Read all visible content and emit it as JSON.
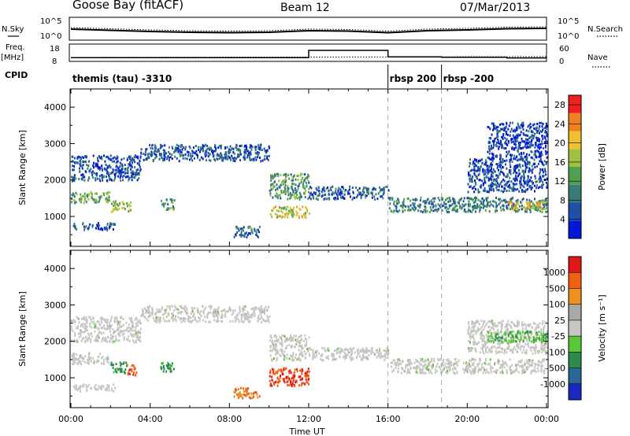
{
  "header": {
    "station": "Goose Bay (fitACF)",
    "beam": "Beam 12",
    "date": "07/Mar/2013"
  },
  "side_labels": {
    "nsky": "N.Sky",
    "nsky_top": "10^5",
    "nsky_bottom": "10^0",
    "freq_line1": "Freq.",
    "freq_line2": "[MHz]",
    "freq_top": "18",
    "freq_bottom": "8",
    "cpid": "CPID",
    "nsearch": "N.Search",
    "nsearch_top": "10^5",
    "nsearch_bottom": "10^0",
    "nave": "Nave",
    "nave_top": "60",
    "nave_bottom": "0"
  },
  "modes": [
    {
      "label": "themis (tau) -3310",
      "start_hour": 0
    },
    {
      "label": "rbsp 200",
      "start_hour": 16
    },
    {
      "label": "rbsp -200",
      "start_hour": 18.7
    }
  ],
  "xaxis": {
    "label": "Time UT",
    "ticks": [
      "00:00",
      "04:00",
      "08:00",
      "12:00",
      "16:00",
      "20:00",
      "00:00"
    ],
    "range_hours": [
      0,
      24
    ]
  },
  "chart_data": [
    {
      "type": "heatmap",
      "name": "power",
      "ylabel": "Slant Range [km]",
      "yticks": [
        "1000",
        "2000",
        "3000",
        "4000"
      ],
      "ylim": [
        180,
        4500
      ],
      "colorbar_label": "Power [dB]",
      "colorbar_ticks": [
        "4",
        "8",
        "12",
        "16",
        "20",
        "24",
        "28"
      ],
      "colorbar_range": [
        0,
        30
      ],
      "colors": [
        "#0018d8",
        "#1f50a8",
        "#3a7a78",
        "#4fa050",
        "#a0c040",
        "#f0c030",
        "#f08020",
        "#f02020"
      ],
      "bands": [
        {
          "t": [
            0.0,
            2.0
          ],
          "r": [
            1400,
            1700
          ],
          "level": 0.45
        },
        {
          "t": [
            0.0,
            3.5
          ],
          "r": [
            2000,
            2700
          ],
          "level": 0.18
        },
        {
          "t": [
            0.1,
            2.2
          ],
          "r": [
            650,
            850
          ],
          "level": 0.22
        },
        {
          "t": [
            2.0,
            3.0
          ],
          "r": [
            1150,
            1450
          ],
          "level": 0.55
        },
        {
          "t": [
            3.5,
            10.0
          ],
          "r": [
            2550,
            3000
          ],
          "level": 0.2
        },
        {
          "t": [
            4.5,
            5.2
          ],
          "r": [
            1200,
            1500
          ],
          "level": 0.35
        },
        {
          "t": [
            8.2,
            9.5
          ],
          "r": [
            450,
            750
          ],
          "level": 0.25
        },
        {
          "t": [
            10.0,
            12.0
          ],
          "r": [
            1500,
            2200
          ],
          "level": 0.4
        },
        {
          "t": [
            10.0,
            12.0
          ],
          "r": [
            1000,
            1300
          ],
          "level": 0.6
        },
        {
          "t": [
            12.0,
            16.0
          ],
          "r": [
            1500,
            1850
          ],
          "level": 0.22
        },
        {
          "t": [
            16.0,
            24.0
          ],
          "r": [
            1150,
            1550
          ],
          "level": 0.3
        },
        {
          "t": [
            20.0,
            24.0
          ],
          "r": [
            1700,
            2600
          ],
          "level": 0.18
        },
        {
          "t": [
            21.0,
            24.0
          ],
          "r": [
            2600,
            3600
          ],
          "level": 0.12
        },
        {
          "t": [
            22.0,
            24.0
          ],
          "r": [
            1200,
            1450
          ],
          "level": 0.65
        }
      ]
    },
    {
      "type": "heatmap",
      "name": "velocity",
      "ylabel": "Slant Range [km]",
      "yticks": [
        "1000",
        "2000",
        "3000",
        "4000"
      ],
      "ylim": [
        180,
        4500
      ],
      "colorbar_label": "Velocity [m s⁻¹]",
      "colorbar_ticks": [
        "1000",
        "500",
        "100",
        "25",
        "-25",
        "-100",
        "-500",
        "-1000"
      ],
      "colors": [
        "#1828c0",
        "#286898",
        "#2e8a4e",
        "#58c838",
        "#c6c6c2",
        "#a8a8a4",
        "#f09020",
        "#f06010",
        "#e01818"
      ],
      "bands": [
        {
          "t": [
            0.0,
            2.0
          ],
          "r": [
            1400,
            1700
          ],
          "level": 0.5
        },
        {
          "t": [
            0.0,
            3.5
          ],
          "r": [
            2000,
            2700
          ],
          "level": 0.5
        },
        {
          "t": [
            0.1,
            2.2
          ],
          "r": [
            650,
            850
          ],
          "level": 0.5
        },
        {
          "t": [
            2.0,
            2.8
          ],
          "r": [
            1150,
            1450
          ],
          "level": 0.28
        },
        {
          "t": [
            2.8,
            3.3
          ],
          "r": [
            1100,
            1400
          ],
          "level": 0.85
        },
        {
          "t": [
            3.5,
            10.0
          ],
          "r": [
            2550,
            3000
          ],
          "level": 0.5
        },
        {
          "t": [
            4.5,
            5.2
          ],
          "r": [
            1200,
            1500
          ],
          "level": 0.3
        },
        {
          "t": [
            8.2,
            9.5
          ],
          "r": [
            450,
            750
          ],
          "level": 0.8
        },
        {
          "t": [
            10.0,
            12.0
          ],
          "r": [
            1500,
            2200
          ],
          "level": 0.5
        },
        {
          "t": [
            10.0,
            12.0
          ],
          "r": [
            800,
            1300
          ],
          "level": 0.88
        },
        {
          "t": [
            12.0,
            16.0
          ],
          "r": [
            1500,
            1850
          ],
          "level": 0.5
        },
        {
          "t": [
            16.0,
            24.0
          ],
          "r": [
            1150,
            1550
          ],
          "level": 0.5
        },
        {
          "t": [
            20.0,
            24.0
          ],
          "r": [
            1700,
            2600
          ],
          "level": 0.5
        },
        {
          "t": [
            21.0,
            24.0
          ],
          "r": [
            2000,
            2300
          ],
          "level": 0.35
        }
      ]
    }
  ],
  "nsky_series": {
    "hours": [
      0,
      2,
      4,
      6,
      8,
      10,
      12,
      14,
      16,
      18,
      20,
      22,
      24
    ],
    "log_values": [
      2.4,
      2.1,
      1.8,
      1.6,
      1.5,
      1.6,
      2.0,
      1.9,
      1.5,
      2.0,
      2.2,
      2.5,
      2.6
    ]
  },
  "freq_series": {
    "hours": [
      0,
      12,
      12,
      16,
      16,
      18.7,
      18.7,
      22,
      22,
      24
    ],
    "mhz": [
      10.4,
      10.4,
      15.0,
      15.0,
      10.9,
      10.9,
      10.6,
      10.6,
      10.2,
      10.2
    ]
  }
}
